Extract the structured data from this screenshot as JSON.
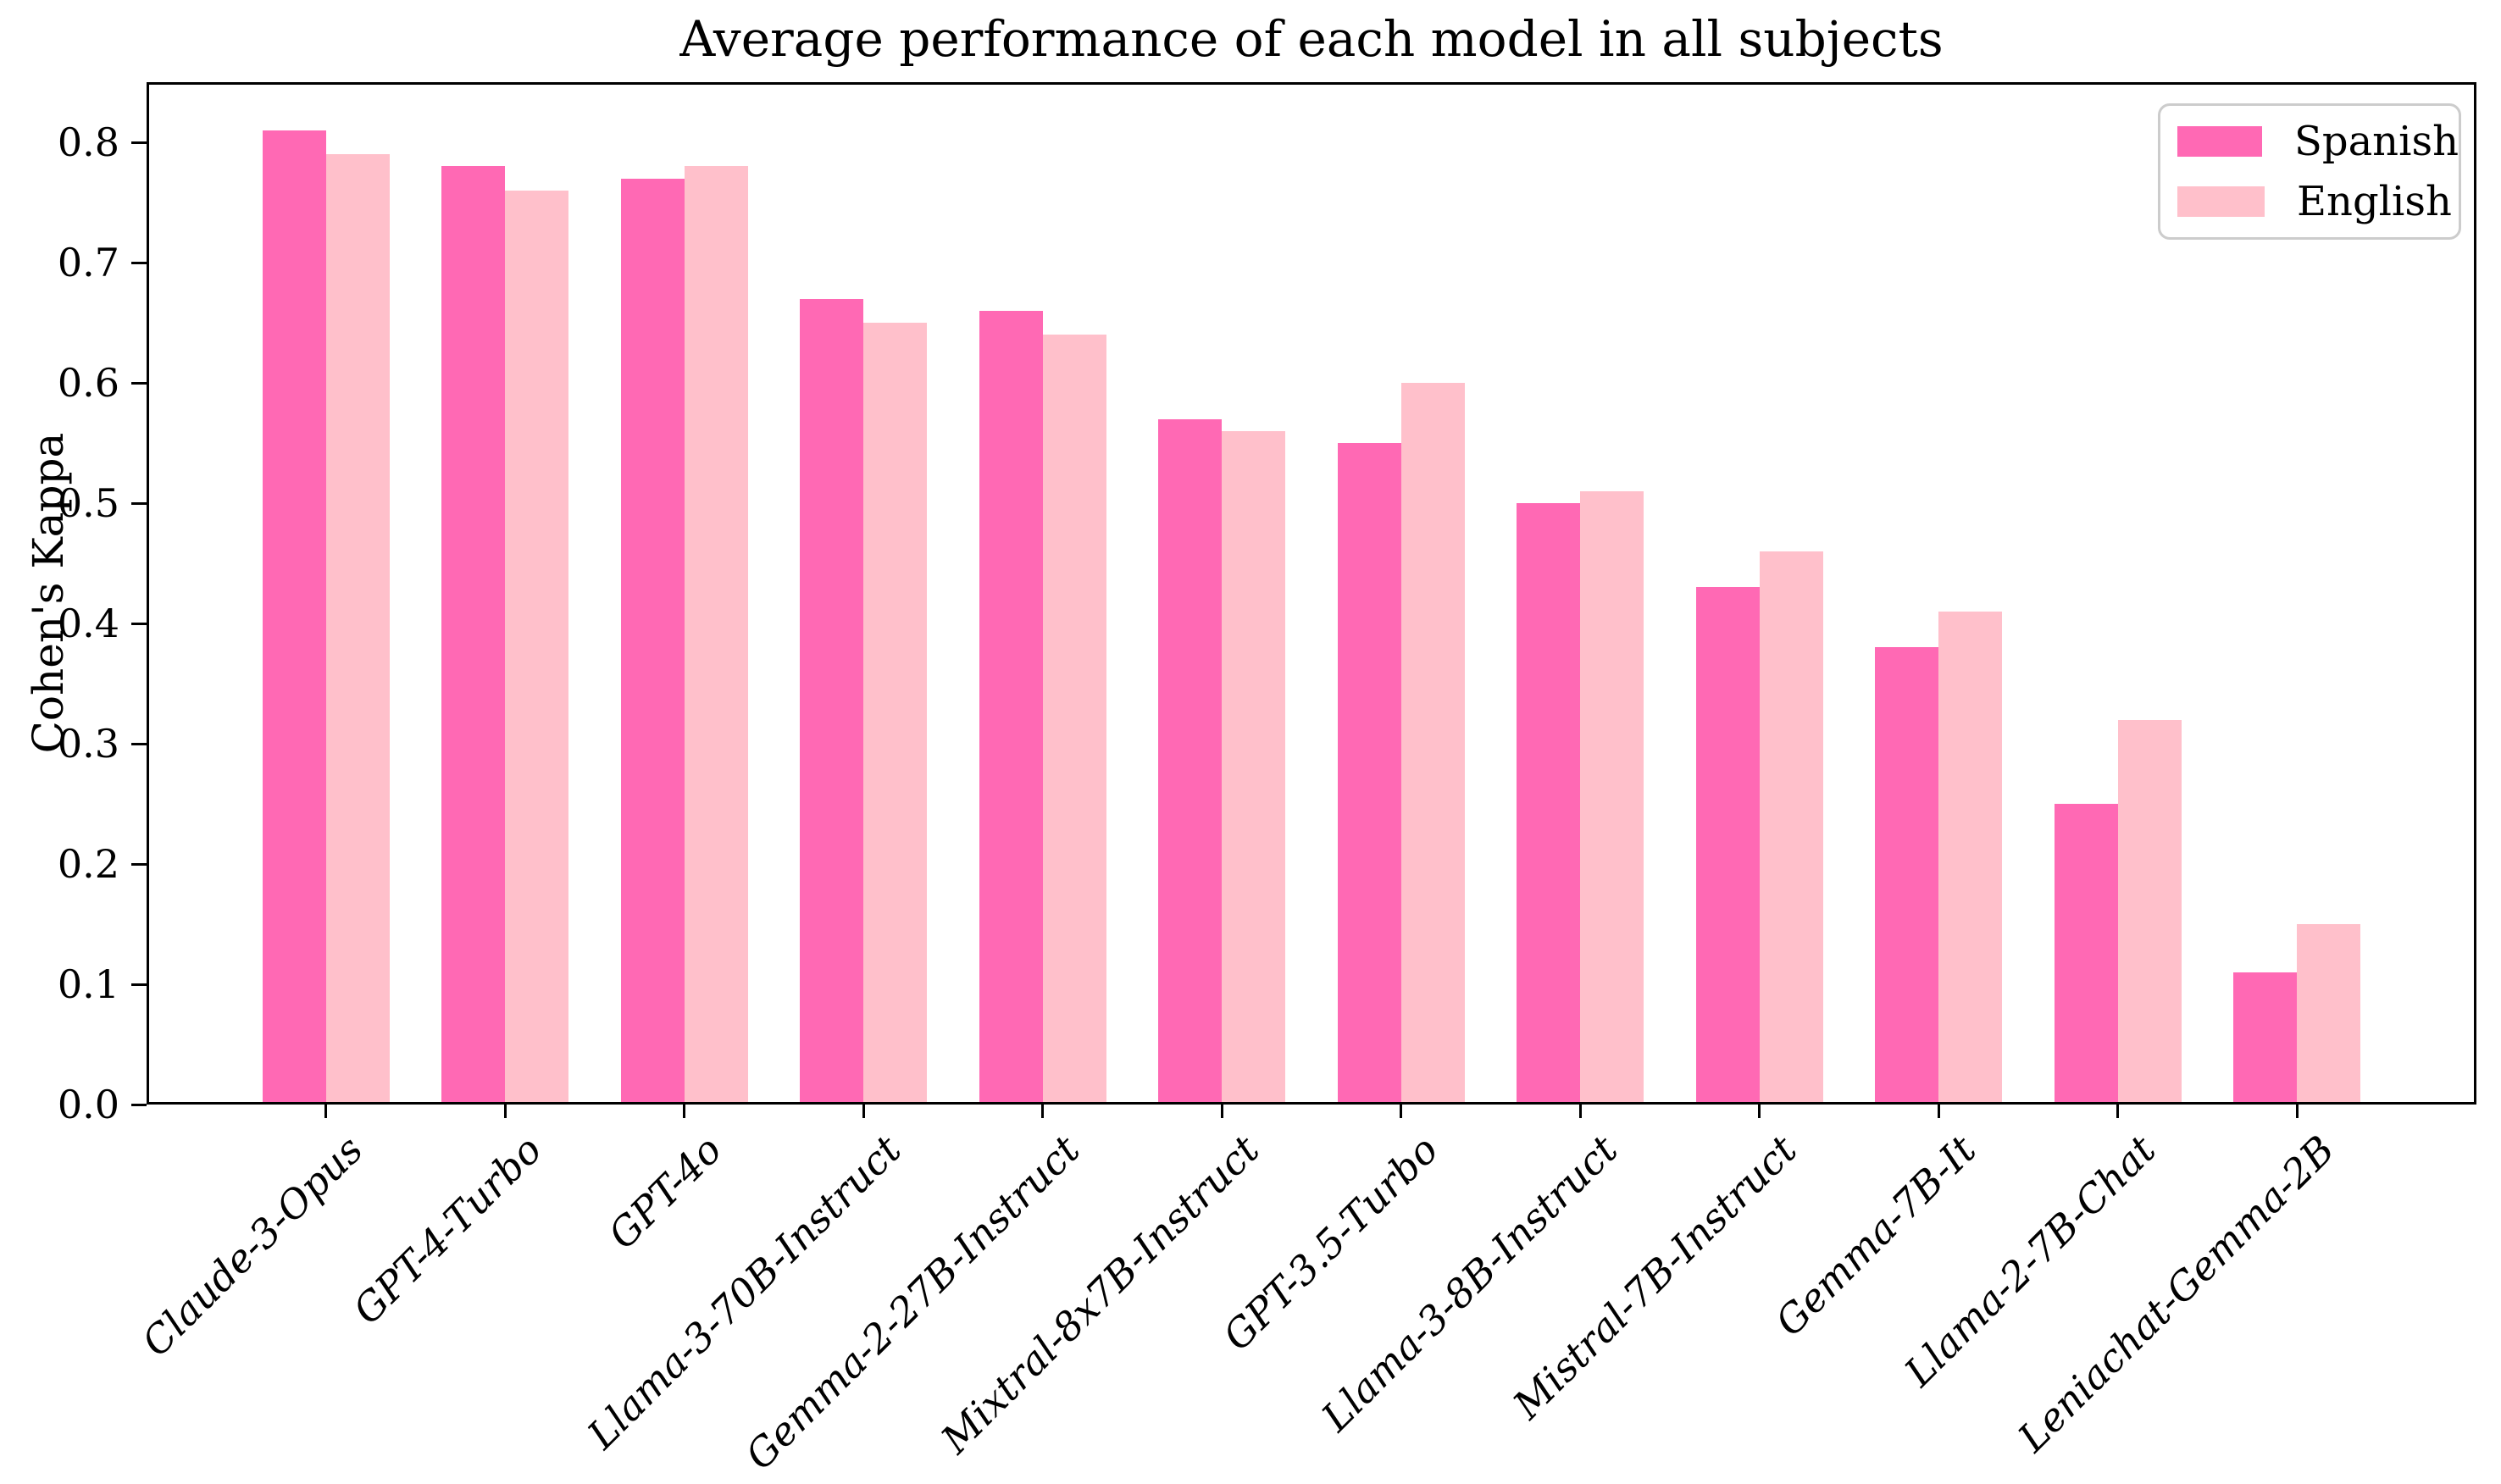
{
  "chart_data": {
    "type": "bar",
    "title": "Average performance of each model in all subjects",
    "xlabel": "",
    "ylabel": "Cohen's Kappa",
    "categories": [
      "Claude-3-Opus",
      "GPT-4-Turbo",
      "GPT-4o",
      "Llama-3-70B-Instruct",
      "Gemma-2-27B-Instruct",
      "Mixtral-8x7B-Instruct",
      "GPT-3.5-Turbo",
      "Llama-3-8B-Instruct",
      "Mistral-7B-Instruct",
      "Gemma-7B-It",
      "Llama-2-7B-Chat",
      "Leniachat-Gemma-2B"
    ],
    "series": [
      {
        "name": "Spanish",
        "color": "#FF69B4",
        "values": [
          0.81,
          0.78,
          0.77,
          0.67,
          0.66,
          0.57,
          0.55,
          0.5,
          0.43,
          0.38,
          0.25,
          0.11
        ]
      },
      {
        "name": "English",
        "color": "#FFC0CB",
        "values": [
          0.79,
          0.76,
          0.78,
          0.65,
          0.64,
          0.56,
          0.6,
          0.51,
          0.46,
          0.41,
          0.32,
          0.15
        ]
      }
    ],
    "ylim": [
      0,
      0.85
    ],
    "yticks": [
      0.0,
      0.1,
      0.2,
      0.3,
      0.4,
      0.5,
      0.6,
      0.7,
      0.8
    ],
    "ytick_labels": [
      "0.0",
      "0.1",
      "0.2",
      "0.3",
      "0.4",
      "0.5",
      "0.6",
      "0.7",
      "0.8"
    ],
    "x_tick_rotation": 45,
    "grid": false,
    "legend_position": "upper right"
  }
}
